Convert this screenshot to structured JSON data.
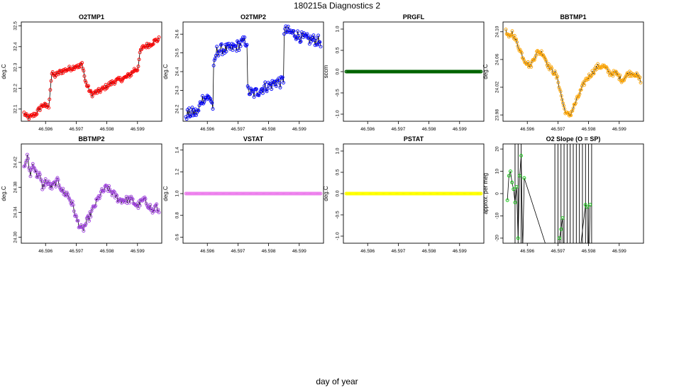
{
  "title": "180215a   Diagnostics 2",
  "xlabel": "day of year",
  "colors": {
    "frame": "#000000",
    "line": "#000000"
  },
  "chart_data": [
    {
      "id": "o2tmp1",
      "type": "line",
      "title": "O2TMP1",
      "ylabel": "deg.C",
      "xlim": [
        46.5953,
        46.5997
      ],
      "ylim": [
        32.055,
        32.505
      ],
      "xticks": [
        46.596,
        46.597,
        46.598,
        46.599
      ],
      "yticks": [
        32.1,
        32.2,
        32.3,
        32.4,
        32.5
      ],
      "ytick_labels": [
        "32.1",
        "32.2",
        "32.3",
        "32.4",
        "32.5"
      ],
      "color": "#ff0000",
      "anchors": [
        [
          46.5953,
          32.08
        ],
        [
          46.5954,
          32.06
        ],
        [
          46.5955,
          32.06
        ],
        [
          46.5957,
          32.08
        ],
        [
          46.5958,
          32.1
        ],
        [
          46.5959,
          32.12
        ],
        [
          46.5961,
          32.11
        ],
        [
          46.5962,
          32.27
        ],
        [
          46.5963,
          32.26
        ],
        [
          46.5965,
          32.28
        ],
        [
          46.5967,
          32.29
        ],
        [
          46.5969,
          32.3
        ],
        [
          46.597,
          32.31
        ],
        [
          46.5971,
          32.3
        ],
        [
          46.5972,
          32.32
        ],
        [
          46.5973,
          32.23
        ],
        [
          46.5975,
          32.17
        ],
        [
          46.5978,
          32.19
        ],
        [
          46.598,
          32.21
        ],
        [
          46.5982,
          32.23
        ],
        [
          46.5984,
          32.24
        ],
        [
          46.5986,
          32.25
        ],
        [
          46.5988,
          32.27
        ],
        [
          46.5989,
          32.29
        ],
        [
          46.599,
          32.29
        ],
        [
          46.5991,
          32.38
        ],
        [
          46.5992,
          32.4
        ],
        [
          46.5994,
          32.41
        ],
        [
          46.5996,
          32.43
        ],
        [
          46.5998,
          32.44
        ],
        [
          46.5999,
          32.46
        ],
        [
          46.6001,
          32.47
        ],
        [
          46.6004,
          32.48
        ],
        [
          46.6006,
          32.48
        ],
        [
          46.5997,
          32.49
        ]
      ],
      "jitter": 0.012
    },
    {
      "id": "o2tmp2",
      "type": "line",
      "title": "O2TMP2",
      "ylabel": "deg.C",
      "xlim": [
        46.5953,
        46.5997
      ],
      "ylim": [
        24.15,
        24.65
      ],
      "xticks": [
        46.596,
        46.597,
        46.598,
        46.599
      ],
      "yticks": [
        24.2,
        24.3,
        24.4,
        24.5,
        24.6
      ],
      "ytick_labels": [
        "24.2",
        "24.3",
        "24.4",
        "24.5",
        "24.6"
      ],
      "color": "#0000ff",
      "anchors": [
        [
          46.5953,
          24.17
        ],
        [
          46.5955,
          24.18
        ],
        [
          46.5957,
          24.18
        ],
        [
          46.5958,
          24.25
        ],
        [
          46.5959,
          24.26
        ],
        [
          46.5961,
          24.26
        ],
        [
          46.5962,
          24.2
        ],
        [
          46.5962,
          24.4
        ],
        [
          46.5963,
          24.51
        ],
        [
          46.5965,
          24.52
        ],
        [
          46.5967,
          24.52
        ],
        [
          46.5969,
          24.53
        ],
        [
          46.597,
          24.54
        ],
        [
          46.5971,
          24.55
        ],
        [
          46.5972,
          24.56
        ],
        [
          46.5973,
          24.56
        ],
        [
          46.5973,
          24.3
        ],
        [
          46.5975,
          24.28
        ],
        [
          46.5977,
          24.3
        ],
        [
          46.5979,
          24.32
        ],
        [
          46.5981,
          24.33
        ],
        [
          46.5983,
          24.35
        ],
        [
          46.5984,
          24.34
        ],
        [
          46.5985,
          24.36
        ],
        [
          46.5985,
          24.62
        ],
        [
          46.5987,
          24.61
        ],
        [
          46.5989,
          24.6
        ],
        [
          46.5991,
          24.58
        ],
        [
          46.5993,
          24.57
        ],
        [
          46.5995,
          24.57
        ],
        [
          46.5997,
          24.56
        ]
      ],
      "jitter": 0.03
    },
    {
      "id": "prgfl",
      "type": "scatter",
      "title": "PRGFL",
      "ylabel": "sccm",
      "xlim": [
        46.5953,
        46.5997
      ],
      "ylim": [
        -1.1,
        1.1
      ],
      "xticks": [
        46.596,
        46.597,
        46.598,
        46.599
      ],
      "yticks": [
        -1.0,
        -0.5,
        0.0,
        0.5,
        1.0
      ],
      "ytick_labels": [
        "-1.0",
        "-0.5",
        "0.0",
        "0.5",
        "1.0"
      ],
      "color": "#006400",
      "constant": 0.0
    },
    {
      "id": "bbtmp1",
      "type": "line",
      "title": "BBTMP1",
      "ylabel": "deg.C",
      "xlim": [
        46.5953,
        46.5997
      ],
      "ylim": [
        23.975,
        24.11
      ],
      "xticks": [
        46.596,
        46.597,
        46.598,
        46.599
      ],
      "yticks": [
        23.98,
        24.02,
        24.06,
        24.1
      ],
      "ytick_labels": [
        "23.98",
        "24.02",
        "24.06",
        "24.10"
      ],
      "color": "#ffa500",
      "anchors": [
        [
          46.5953,
          24.1
        ],
        [
          46.5954,
          24.09
        ],
        [
          46.5955,
          24.1
        ],
        [
          46.5956,
          24.09
        ],
        [
          46.5957,
          24.08
        ],
        [
          46.5958,
          24.07
        ],
        [
          46.5959,
          24.06
        ],
        [
          46.5961,
          24.05
        ],
        [
          46.5963,
          24.07
        ],
        [
          46.5965,
          24.07
        ],
        [
          46.5967,
          24.05
        ],
        [
          46.5969,
          24.04
        ],
        [
          46.597,
          24.03
        ],
        [
          46.5971,
          24.01
        ],
        [
          46.5972,
          23.99
        ],
        [
          46.5973,
          23.98
        ],
        [
          46.5974,
          23.98
        ],
        [
          46.5975,
          23.99
        ],
        [
          46.5976,
          24.0
        ],
        [
          46.5977,
          24.01
        ],
        [
          46.5978,
          24.02
        ],
        [
          46.5979,
          24.03
        ],
        [
          46.5981,
          24.04
        ],
        [
          46.5983,
          24.05
        ],
        [
          46.5985,
          24.05
        ],
        [
          46.5987,
          24.04
        ],
        [
          46.5989,
          24.04
        ],
        [
          46.5991,
          24.03
        ],
        [
          46.5993,
          24.04
        ],
        [
          46.5995,
          24.04
        ],
        [
          46.5997,
          24.03
        ]
      ],
      "jitter": 0.004
    },
    {
      "id": "bbtmp2",
      "type": "line",
      "title": "BBTMP2",
      "ylabel": "deg.C",
      "xlim": [
        46.5953,
        46.5997
      ],
      "ylim": [
        24.295,
        24.445
      ],
      "xticks": [
        46.596,
        46.597,
        46.598,
        46.599
      ],
      "yticks": [
        24.3,
        24.34,
        24.38,
        24.42
      ],
      "ytick_labels": [
        "24.30",
        "24.34",
        "24.38",
        "24.42"
      ],
      "color": "#a040e0",
      "anchors": [
        [
          46.5953,
          24.41
        ],
        [
          46.5954,
          24.43
        ],
        [
          46.5955,
          24.4
        ],
        [
          46.5956,
          24.42
        ],
        [
          46.5957,
          24.4
        ],
        [
          46.5958,
          24.4
        ],
        [
          46.5959,
          24.38
        ],
        [
          46.596,
          24.39
        ],
        [
          46.5962,
          24.38
        ],
        [
          46.5964,
          24.39
        ],
        [
          46.5965,
          24.38
        ],
        [
          46.5966,
          24.37
        ],
        [
          46.5967,
          24.37
        ],
        [
          46.5968,
          24.36
        ],
        [
          46.5969,
          24.35
        ],
        [
          46.597,
          24.33
        ],
        [
          46.5971,
          24.32
        ],
        [
          46.5972,
          24.31
        ],
        [
          46.5973,
          24.32
        ],
        [
          46.5974,
          24.33
        ],
        [
          46.5975,
          24.34
        ],
        [
          46.5976,
          24.35
        ],
        [
          46.5977,
          24.36
        ],
        [
          46.5978,
          24.37
        ],
        [
          46.598,
          24.38
        ],
        [
          46.5982,
          24.37
        ],
        [
          46.5984,
          24.36
        ],
        [
          46.5986,
          24.36
        ],
        [
          46.5988,
          24.36
        ],
        [
          46.599,
          24.35
        ],
        [
          46.5992,
          24.36
        ],
        [
          46.5994,
          24.35
        ],
        [
          46.5995,
          24.34
        ],
        [
          46.5996,
          24.35
        ],
        [
          46.5997,
          24.34
        ]
      ],
      "jitter": 0.006
    },
    {
      "id": "vstat",
      "type": "scatter",
      "title": "VSTAT",
      "ylabel": "deg.C",
      "xlim": [
        46.5953,
        46.5997
      ],
      "ylim": [
        0.57,
        1.43
      ],
      "xticks": [
        46.596,
        46.597,
        46.598,
        46.599
      ],
      "yticks": [
        0.6,
        0.8,
        1.0,
        1.2,
        1.4
      ],
      "ytick_labels": [
        "0.6",
        "0.8",
        "1.0",
        "1.2",
        "1.4"
      ],
      "color": "#ee82ee",
      "constant": 1.0
    },
    {
      "id": "pstat",
      "type": "scatter",
      "title": "PSTAT",
      "ylabel": "deg.C",
      "xlim": [
        46.5953,
        46.5997
      ],
      "ylim": [
        -1.1,
        1.1
      ],
      "xticks": [
        46.596,
        46.597,
        46.598,
        46.599
      ],
      "yticks": [
        -1.0,
        -0.5,
        0.0,
        0.5,
        1.0
      ],
      "ytick_labels": [
        "-1.0",
        "-0.5",
        "0.0",
        "0.5",
        "1.0"
      ],
      "color": "#ffff00",
      "constant": 0.0
    },
    {
      "id": "o2slope",
      "type": "line",
      "title": "O2 Slope (O = SP)",
      "ylabel": "approx. per meg",
      "xlim": [
        46.5953,
        46.5997
      ],
      "ylim": [
        -21,
        21
      ],
      "xticks": [
        46.596,
        46.597,
        46.598,
        46.599
      ],
      "yticks": [
        -20,
        -10,
        0,
        10,
        20
      ],
      "ytick_labels": [
        "-20",
        "-10",
        "0",
        "10",
        "20"
      ],
      "color": "#00cc00",
      "points": [
        [
          46.59535,
          -3
        ],
        [
          46.5954,
          8
        ],
        [
          46.59545,
          10
        ],
        [
          46.5955,
          5
        ],
        [
          46.59555,
          2
        ],
        [
          46.5956,
          -4
        ],
        [
          46.59565,
          3
        ],
        [
          46.5957,
          -20
        ],
        [
          46.59575,
          8
        ],
        [
          46.5958,
          17
        ],
        [
          46.59585,
          -25
        ],
        [
          46.5959,
          7
        ],
        [
          46.597,
          -40
        ],
        [
          46.59705,
          -20
        ],
        [
          46.5971,
          -16
        ],
        [
          46.59715,
          -11
        ],
        [
          46.5972,
          -40
        ],
        [
          46.5976,
          -40
        ],
        [
          46.5979,
          -5
        ],
        [
          46.59795,
          -6
        ],
        [
          46.598,
          -40
        ],
        [
          46.59805,
          -5
        ]
      ],
      "spikes": [
        46.5956,
        46.5957,
        46.5958,
        46.5969,
        46.597,
        46.5971,
        46.5972,
        46.5973,
        46.5974,
        46.5975,
        46.5976,
        46.5977,
        46.5978,
        46.5979,
        46.598,
        46.5981
      ]
    }
  ]
}
